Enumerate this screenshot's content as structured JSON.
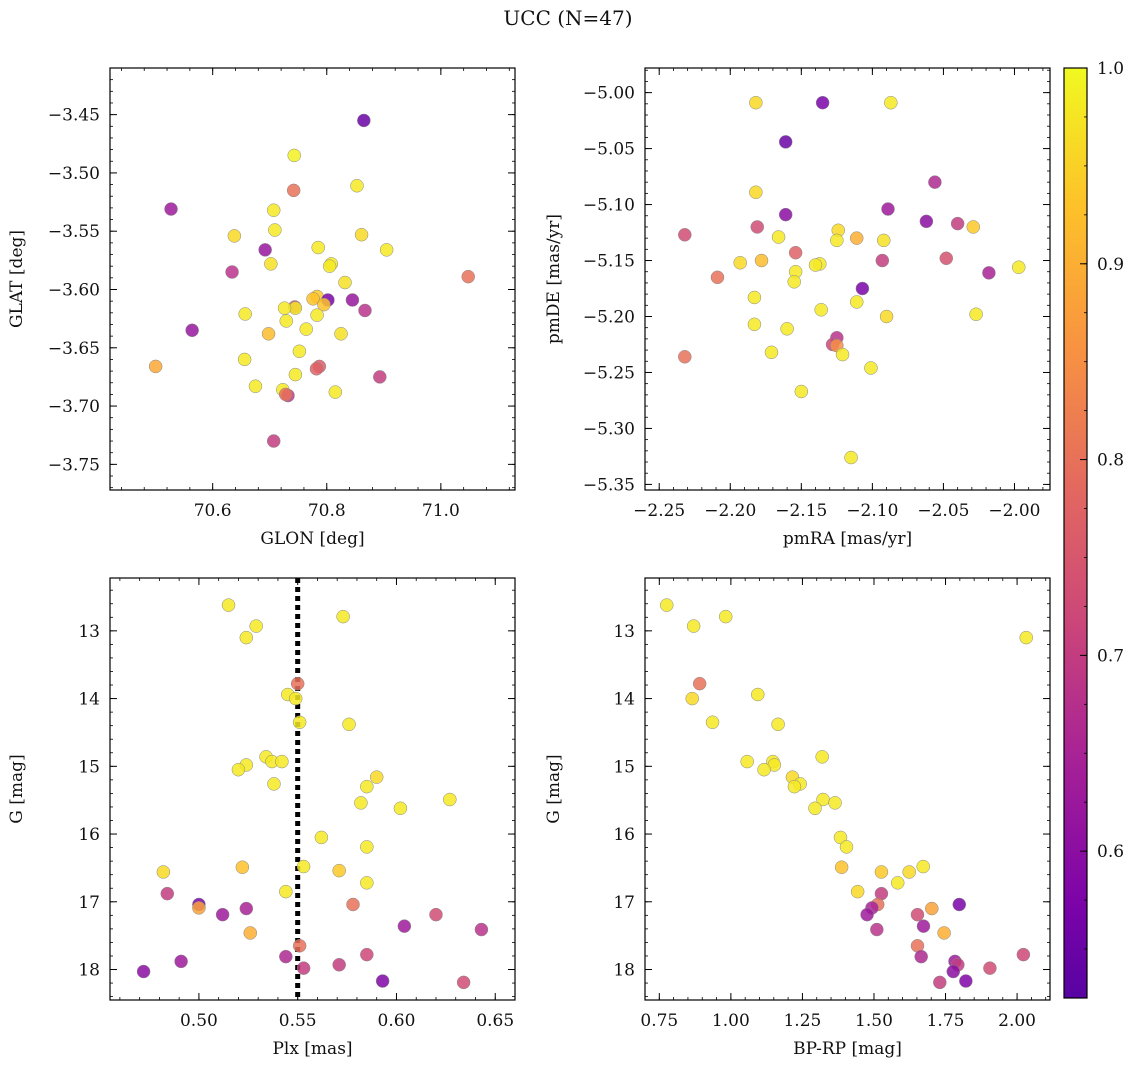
{
  "figure": {
    "title": "UCC (N=47)"
  },
  "colorbar": {
    "min": 0.525,
    "max": 1.0,
    "ticks": [
      0.6,
      0.7,
      0.8,
      0.9,
      1.0
    ],
    "tick_labels": [
      "0.6",
      "0.7",
      "0.8",
      "0.9",
      "1.0"
    ],
    "colormap": "plasma"
  },
  "chart_data": [
    {
      "type": "scatter",
      "xlabel": "GLON [deg]",
      "ylabel": "GLAT [deg]",
      "xlim": [
        70.42,
        71.13
      ],
      "ylim": [
        -3.772,
        -3.41
      ],
      "xticks": [
        70.6,
        70.8,
        71.0
      ],
      "xtick_labels": [
        "70.6",
        "70.8",
        "71.0"
      ],
      "yticks": [
        -3.45,
        -3.5,
        -3.55,
        -3.6,
        -3.65,
        -3.7,
        -3.75
      ],
      "ytick_labels": [
        "−3.45",
        "−3.50",
        "−3.55",
        "−3.60",
        "−3.65",
        "−3.70",
        "−3.75"
      ],
      "points": [
        {
          "x": 70.865,
          "y": -3.455,
          "c": 0.55
        },
        {
          "x": 70.743,
          "y": -3.485,
          "c": 0.99
        },
        {
          "x": 70.742,
          "y": -3.515,
          "c": 0.8
        },
        {
          "x": 70.853,
          "y": -3.511,
          "c": 0.98
        },
        {
          "x": 70.527,
          "y": -3.531,
          "c": 0.63
        },
        {
          "x": 70.707,
          "y": -3.532,
          "c": 0.98
        },
        {
          "x": 70.709,
          "y": -3.549,
          "c": 0.98
        },
        {
          "x": 70.638,
          "y": -3.554,
          "c": 0.96
        },
        {
          "x": 70.861,
          "y": -3.553,
          "c": 0.96
        },
        {
          "x": 70.692,
          "y": -3.566,
          "c": 0.62
        },
        {
          "x": 70.785,
          "y": -3.564,
          "c": 0.98
        },
        {
          "x": 70.905,
          "y": -3.566,
          "c": 0.98
        },
        {
          "x": 70.702,
          "y": -3.578,
          "c": 0.97
        },
        {
          "x": 70.808,
          "y": -3.578,
          "c": 0.98
        },
        {
          "x": 70.805,
          "y": -3.58,
          "c": 0.98
        },
        {
          "x": 70.634,
          "y": -3.585,
          "c": 0.68
        },
        {
          "x": 71.048,
          "y": -3.589,
          "c": 0.8
        },
        {
          "x": 70.832,
          "y": -3.594,
          "c": 0.97
        },
        {
          "x": 70.783,
          "y": -3.606,
          "c": 0.94
        },
        {
          "x": 70.776,
          "y": -3.608,
          "c": 0.93
        },
        {
          "x": 70.802,
          "y": -3.609,
          "c": 0.57
        },
        {
          "x": 70.845,
          "y": -3.609,
          "c": 0.62
        },
        {
          "x": 70.795,
          "y": -3.613,
          "c": 0.93
        },
        {
          "x": 70.744,
          "y": -3.615,
          "c": 0.73
        },
        {
          "x": 70.745,
          "y": -3.616,
          "c": 0.98
        },
        {
          "x": 70.726,
          "y": -3.616,
          "c": 0.98
        },
        {
          "x": 70.867,
          "y": -3.618,
          "c": 0.68
        },
        {
          "x": 70.657,
          "y": -3.621,
          "c": 0.98
        },
        {
          "x": 70.783,
          "y": -3.622,
          "c": 0.98
        },
        {
          "x": 70.729,
          "y": -3.627,
          "c": 0.98
        },
        {
          "x": 70.764,
          "y": -3.634,
          "c": 0.98
        },
        {
          "x": 70.564,
          "y": -3.635,
          "c": 0.62
        },
        {
          "x": 70.698,
          "y": -3.638,
          "c": 0.92
        },
        {
          "x": 70.825,
          "y": -3.638,
          "c": 0.97
        },
        {
          "x": 70.752,
          "y": -3.653,
          "c": 0.98
        },
        {
          "x": 70.656,
          "y": -3.66,
          "c": 0.98
        },
        {
          "x": 70.787,
          "y": -3.666,
          "c": 0.76
        },
        {
          "x": 70.5,
          "y": -3.666,
          "c": 0.89
        },
        {
          "x": 70.782,
          "y": -3.668,
          "c": 0.77
        },
        {
          "x": 70.745,
          "y": -3.673,
          "c": 0.98
        },
        {
          "x": 70.893,
          "y": -3.675,
          "c": 0.7
        },
        {
          "x": 70.675,
          "y": -3.683,
          "c": 0.98
        },
        {
          "x": 70.723,
          "y": -3.686,
          "c": 0.98
        },
        {
          "x": 70.815,
          "y": -3.688,
          "c": 0.98
        },
        {
          "x": 70.732,
          "y": -3.691,
          "c": 0.69
        },
        {
          "x": 70.728,
          "y": -3.69,
          "c": 0.8
        },
        {
          "x": 70.707,
          "y": -3.73,
          "c": 0.7
        }
      ]
    },
    {
      "type": "scatter",
      "xlabel": "pmRA [mas/yr]",
      "ylabel": "pmDE [mas/yr]",
      "xlim": [
        -2.26,
        -1.975
      ],
      "ylim": [
        -5.355,
        -4.978
      ],
      "xticks": [
        -2.25,
        -2.2,
        -2.15,
        -2.1,
        -2.05,
        -2.0
      ],
      "xtick_labels": [
        "−2.25",
        "−2.20",
        "−2.15",
        "−2.10",
        "−2.05",
        "−2.00"
      ],
      "yticks": [
        -5.0,
        -5.05,
        -5.1,
        -5.15,
        -5.2,
        -5.25,
        -5.3,
        -5.35
      ],
      "ytick_labels": [
        "−5.00",
        "−5.05",
        "−5.10",
        "−5.15",
        "−5.20",
        "−5.25",
        "−5.30",
        "−5.35"
      ],
      "points": [
        {
          "x": -2.182,
          "y": -5.009,
          "c": 0.96
        },
        {
          "x": -2.135,
          "y": -5.009,
          "c": 0.57
        },
        {
          "x": -2.087,
          "y": -5.009,
          "c": 0.98
        },
        {
          "x": -2.161,
          "y": -5.044,
          "c": 0.55
        },
        {
          "x": -2.056,
          "y": -5.08,
          "c": 0.66
        },
        {
          "x": -2.182,
          "y": -5.089,
          "c": 0.96
        },
        {
          "x": -2.089,
          "y": -5.104,
          "c": 0.63
        },
        {
          "x": -2.161,
          "y": -5.109,
          "c": 0.6
        },
        {
          "x": -2.062,
          "y": -5.115,
          "c": 0.6
        },
        {
          "x": -2.04,
          "y": -5.117,
          "c": 0.7
        },
        {
          "x": -2.029,
          "y": -5.12,
          "c": 0.94
        },
        {
          "x": -2.181,
          "y": -5.12,
          "c": 0.73
        },
        {
          "x": -2.124,
          "y": -5.123,
          "c": 0.96
        },
        {
          "x": -2.232,
          "y": -5.127,
          "c": 0.73
        },
        {
          "x": -2.166,
          "y": -5.129,
          "c": 0.98
        },
        {
          "x": -2.111,
          "y": -5.13,
          "c": 0.9
        },
        {
          "x": -2.125,
          "y": -5.132,
          "c": 0.98
        },
        {
          "x": -2.092,
          "y": -5.132,
          "c": 0.97
        },
        {
          "x": -2.154,
          "y": -5.143,
          "c": 0.77
        },
        {
          "x": -2.048,
          "y": -5.148,
          "c": 0.74
        },
        {
          "x": -2.093,
          "y": -5.15,
          "c": 0.7
        },
        {
          "x": -2.178,
          "y": -5.15,
          "c": 0.92
        },
        {
          "x": -2.193,
          "y": -5.152,
          "c": 0.96
        },
        {
          "x": -2.137,
          "y": -5.153,
          "c": 0.98
        },
        {
          "x": -2.14,
          "y": -5.154,
          "c": 0.98
        },
        {
          "x": -1.997,
          "y": -5.156,
          "c": 0.98
        },
        {
          "x": -2.154,
          "y": -5.16,
          "c": 0.98
        },
        {
          "x": -2.018,
          "y": -5.161,
          "c": 0.65
        },
        {
          "x": -2.209,
          "y": -5.165,
          "c": 0.8
        },
        {
          "x": -2.155,
          "y": -5.169,
          "c": 0.98
        },
        {
          "x": -2.107,
          "y": -5.175,
          "c": 0.57
        },
        {
          "x": -2.183,
          "y": -5.183,
          "c": 0.98
        },
        {
          "x": -2.111,
          "y": -5.187,
          "c": 0.98
        },
        {
          "x": -2.136,
          "y": -5.194,
          "c": 0.98
        },
        {
          "x": -2.027,
          "y": -5.198,
          "c": 0.98
        },
        {
          "x": -2.09,
          "y": -5.2,
          "c": 0.96
        },
        {
          "x": -2.183,
          "y": -5.207,
          "c": 0.98
        },
        {
          "x": -2.16,
          "y": -5.211,
          "c": 0.98
        },
        {
          "x": -2.125,
          "y": -5.219,
          "c": 0.68
        },
        {
          "x": -2.128,
          "y": -5.225,
          "c": 0.72
        },
        {
          "x": -2.125,
          "y": -5.226,
          "c": 0.85
        },
        {
          "x": -2.171,
          "y": -5.232,
          "c": 0.98
        },
        {
          "x": -2.121,
          "y": -5.234,
          "c": 0.98
        },
        {
          "x": -2.232,
          "y": -5.236,
          "c": 0.8
        },
        {
          "x": -2.101,
          "y": -5.246,
          "c": 0.98
        },
        {
          "x": -2.15,
          "y": -5.267,
          "c": 0.98
        },
        {
          "x": -2.115,
          "y": -5.326,
          "c": 0.98
        }
      ]
    },
    {
      "type": "scatter",
      "xlabel": "Plx [mas]",
      "ylabel": "G [mag]",
      "xlim": [
        0.455,
        0.66
      ],
      "ylim": [
        18.45,
        12.22
      ],
      "xticks": [
        0.5,
        0.55,
        0.6,
        0.65
      ],
      "xtick_labels": [
        "0.50",
        "0.55",
        "0.60",
        "0.65"
      ],
      "yticks": [
        13,
        14,
        15,
        16,
        17,
        18
      ],
      "ytick_labels": [
        "13",
        "14",
        "15",
        "16",
        "17",
        "18"
      ],
      "vline": {
        "x": 0.55,
        "style": "dotted",
        "color": "#000000"
      },
      "points": [
        {
          "x": 0.515,
          "y": 12.62,
          "c": 0.98
        },
        {
          "x": 0.573,
          "y": 12.79,
          "c": 0.98
        },
        {
          "x": 0.529,
          "y": 12.93,
          "c": 0.98
        },
        {
          "x": 0.524,
          "y": 13.1,
          "c": 0.98
        },
        {
          "x": 0.55,
          "y": 13.78,
          "c": 0.8
        },
        {
          "x": 0.545,
          "y": 13.94,
          "c": 0.98
        },
        {
          "x": 0.549,
          "y": 14.0,
          "c": 0.98
        },
        {
          "x": 0.551,
          "y": 14.35,
          "c": 0.98
        },
        {
          "x": 0.576,
          "y": 14.38,
          "c": 0.98
        },
        {
          "x": 0.534,
          "y": 14.86,
          "c": 0.98
        },
        {
          "x": 0.537,
          "y": 14.93,
          "c": 0.98
        },
        {
          "x": 0.542,
          "y": 14.93,
          "c": 0.98
        },
        {
          "x": 0.524,
          "y": 14.98,
          "c": 0.98
        },
        {
          "x": 0.52,
          "y": 15.05,
          "c": 0.98
        },
        {
          "x": 0.59,
          "y": 15.16,
          "c": 0.96
        },
        {
          "x": 0.538,
          "y": 15.26,
          "c": 0.98
        },
        {
          "x": 0.585,
          "y": 15.3,
          "c": 0.98
        },
        {
          "x": 0.627,
          "y": 15.49,
          "c": 0.98
        },
        {
          "x": 0.582,
          "y": 15.54,
          "c": 0.98
        },
        {
          "x": 0.602,
          "y": 15.62,
          "c": 0.98
        },
        {
          "x": 0.562,
          "y": 16.05,
          "c": 0.98
        },
        {
          "x": 0.585,
          "y": 16.19,
          "c": 0.98
        },
        {
          "x": 0.553,
          "y": 16.48,
          "c": 0.98
        },
        {
          "x": 0.522,
          "y": 16.49,
          "c": 0.93
        },
        {
          "x": 0.571,
          "y": 16.54,
          "c": 0.94
        },
        {
          "x": 0.482,
          "y": 16.56,
          "c": 0.96
        },
        {
          "x": 0.585,
          "y": 16.72,
          "c": 0.98
        },
        {
          "x": 0.544,
          "y": 16.85,
          "c": 0.98
        },
        {
          "x": 0.484,
          "y": 16.88,
          "c": 0.7
        },
        {
          "x": 0.578,
          "y": 17.04,
          "c": 0.8
        },
        {
          "x": 0.5,
          "y": 17.04,
          "c": 0.57
        },
        {
          "x": 0.5,
          "y": 17.09,
          "c": 0.88
        },
        {
          "x": 0.524,
          "y": 17.1,
          "c": 0.65
        },
        {
          "x": 0.512,
          "y": 17.19,
          "c": 0.63
        },
        {
          "x": 0.62,
          "y": 17.19,
          "c": 0.73
        },
        {
          "x": 0.604,
          "y": 17.36,
          "c": 0.63
        },
        {
          "x": 0.643,
          "y": 17.41,
          "c": 0.68
        },
        {
          "x": 0.526,
          "y": 17.46,
          "c": 0.9
        },
        {
          "x": 0.551,
          "y": 17.65,
          "c": 0.8
        },
        {
          "x": 0.585,
          "y": 17.78,
          "c": 0.72
        },
        {
          "x": 0.544,
          "y": 17.81,
          "c": 0.66
        },
        {
          "x": 0.491,
          "y": 17.88,
          "c": 0.63
        },
        {
          "x": 0.571,
          "y": 17.93,
          "c": 0.7
        },
        {
          "x": 0.553,
          "y": 17.98,
          "c": 0.7
        },
        {
          "x": 0.472,
          "y": 18.03,
          "c": 0.6
        },
        {
          "x": 0.593,
          "y": 18.17,
          "c": 0.58
        },
        {
          "x": 0.634,
          "y": 18.19,
          "c": 0.73
        }
      ]
    },
    {
      "type": "scatter",
      "xlabel": "BP-RP [mag]",
      "ylabel": "G [mag]",
      "xlim": [
        0.7,
        2.115
      ],
      "ylim": [
        18.45,
        12.22
      ],
      "xticks": [
        0.75,
        1.0,
        1.25,
        1.5,
        1.75,
        2.0
      ],
      "xtick_labels": [
        "0.75",
        "1.00",
        "1.25",
        "1.50",
        "1.75",
        "2.00"
      ],
      "yticks": [
        13,
        14,
        15,
        16,
        17,
        18
      ],
      "ytick_labels": [
        "13",
        "14",
        "15",
        "16",
        "17",
        "18"
      ],
      "points": [
        {
          "x": 0.776,
          "y": 12.62,
          "c": 0.98
        },
        {
          "x": 0.87,
          "y": 12.93,
          "c": 0.98
        },
        {
          "x": 0.982,
          "y": 12.79,
          "c": 0.98
        },
        {
          "x": 2.032,
          "y": 13.1,
          "c": 0.98
        },
        {
          "x": 0.891,
          "y": 13.78,
          "c": 0.8
        },
        {
          "x": 0.865,
          "y": 14.0,
          "c": 0.96
        },
        {
          "x": 1.094,
          "y": 13.94,
          "c": 0.98
        },
        {
          "x": 0.936,
          "y": 14.35,
          "c": 0.98
        },
        {
          "x": 1.165,
          "y": 14.38,
          "c": 0.98
        },
        {
          "x": 1.319,
          "y": 14.86,
          "c": 0.98
        },
        {
          "x": 1.057,
          "y": 14.93,
          "c": 0.98
        },
        {
          "x": 1.147,
          "y": 14.93,
          "c": 0.98
        },
        {
          "x": 1.152,
          "y": 14.98,
          "c": 0.98
        },
        {
          "x": 1.116,
          "y": 15.05,
          "c": 0.98
        },
        {
          "x": 1.215,
          "y": 15.16,
          "c": 0.96
        },
        {
          "x": 1.242,
          "y": 15.26,
          "c": 0.98
        },
        {
          "x": 1.222,
          "y": 15.3,
          "c": 0.98
        },
        {
          "x": 1.322,
          "y": 15.49,
          "c": 0.98
        },
        {
          "x": 1.364,
          "y": 15.54,
          "c": 0.98
        },
        {
          "x": 1.294,
          "y": 15.62,
          "c": 0.98
        },
        {
          "x": 1.383,
          "y": 16.05,
          "c": 0.98
        },
        {
          "x": 1.404,
          "y": 16.19,
          "c": 0.98
        },
        {
          "x": 1.387,
          "y": 16.49,
          "c": 0.93
        },
        {
          "x": 1.672,
          "y": 16.48,
          "c": 0.98
        },
        {
          "x": 1.526,
          "y": 16.56,
          "c": 0.94
        },
        {
          "x": 1.623,
          "y": 16.56,
          "c": 0.96
        },
        {
          "x": 1.583,
          "y": 16.72,
          "c": 0.98
        },
        {
          "x": 1.443,
          "y": 16.85,
          "c": 0.96
        },
        {
          "x": 1.526,
          "y": 16.88,
          "c": 0.7
        },
        {
          "x": 1.513,
          "y": 17.04,
          "c": 0.8
        },
        {
          "x": 1.798,
          "y": 17.04,
          "c": 0.57
        },
        {
          "x": 1.493,
          "y": 17.09,
          "c": 0.65
        },
        {
          "x": 1.702,
          "y": 17.1,
          "c": 0.88
        },
        {
          "x": 1.476,
          "y": 17.19,
          "c": 0.63
        },
        {
          "x": 1.652,
          "y": 17.19,
          "c": 0.73
        },
        {
          "x": 1.673,
          "y": 17.36,
          "c": 0.63
        },
        {
          "x": 1.51,
          "y": 17.41,
          "c": 0.68
        },
        {
          "x": 1.745,
          "y": 17.46,
          "c": 0.9
        },
        {
          "x": 1.652,
          "y": 17.65,
          "c": 0.8
        },
        {
          "x": 1.665,
          "y": 17.81,
          "c": 0.66
        },
        {
          "x": 2.022,
          "y": 17.78,
          "c": 0.72
        },
        {
          "x": 1.783,
          "y": 17.88,
          "c": 0.63
        },
        {
          "x": 1.793,
          "y": 17.93,
          "c": 0.7
        },
        {
          "x": 1.905,
          "y": 17.98,
          "c": 0.73
        },
        {
          "x": 1.777,
          "y": 18.03,
          "c": 0.6
        },
        {
          "x": 1.73,
          "y": 18.19,
          "c": 0.7
        },
        {
          "x": 1.821,
          "y": 18.17,
          "c": 0.58
        }
      ]
    }
  ]
}
